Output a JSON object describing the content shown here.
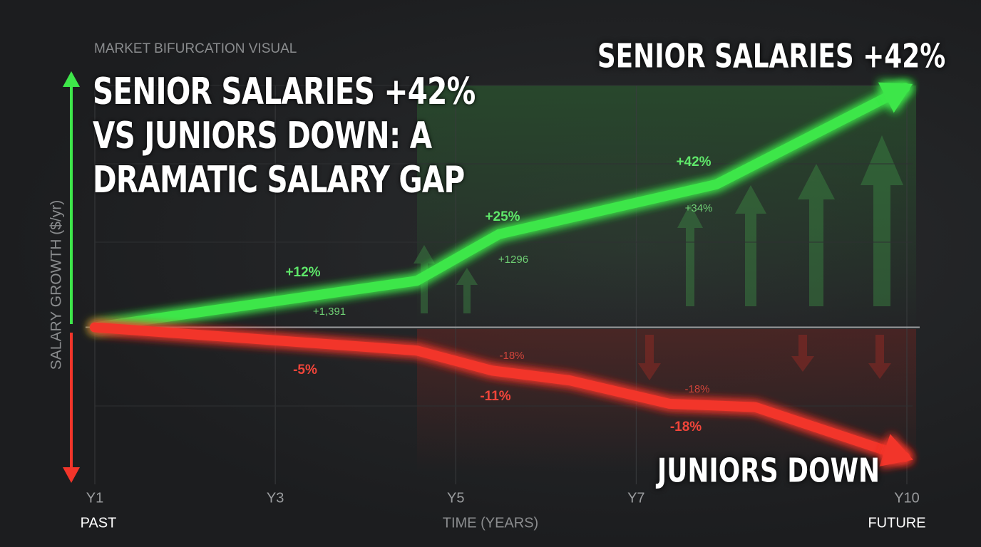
{
  "chart_data": {
    "type": "line",
    "subtitle": "MARKET BIFURCATION VISUAL",
    "title": "SENIOR SALARIES +42% VS JUNIORS DOWN: A DRAMATIC SALARY GAP",
    "y_label": "SALARY GROWTH ($/yr)",
    "x_label": "TIME (YEARS)",
    "x_start_label": "PAST",
    "x_end_label": "FUTURE",
    "xlim": [
      1,
      10
    ],
    "xticks": [
      {
        "value": 1,
        "label": "Y1"
      },
      {
        "value": 3,
        "label": "Y3"
      },
      {
        "value": 5,
        "label": "Y5"
      },
      {
        "value": 7,
        "label": "Y7"
      },
      {
        "value": 10,
        "label": "Y10"
      }
    ],
    "ylim": [
      -44,
      77
    ],
    "grid": true,
    "series": [
      {
        "name": "SENIOR SALARIES +42%",
        "color": "#3ee64a",
        "x": [
          1,
          4.57,
          5.48,
          7.89,
          9.98
        ],
        "values": [
          0,
          14,
          28,
          43,
          72
        ]
      },
      {
        "name": "JUNIORS DOWN",
        "color": "#f2352a",
        "x": [
          1,
          4.57,
          5.4,
          6.27,
          7.37,
          8.32,
          9.98
        ],
        "values": [
          0,
          -7,
          -13,
          -16,
          -23,
          -24,
          -39
        ]
      }
    ],
    "annotations": [
      "+12%",
      "+25%",
      "+42%",
      "+34%",
      "+1,391",
      "+1296",
      "-5%",
      "-11%",
      "-18%",
      "-18%",
      "-18%"
    ]
  }
}
